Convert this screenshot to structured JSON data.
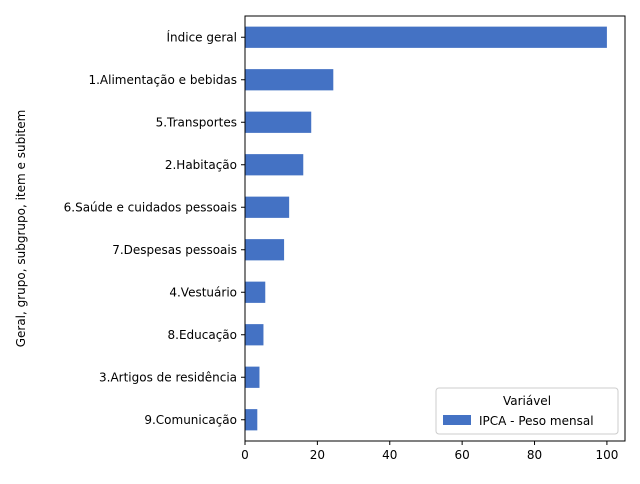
{
  "chart_data": {
    "type": "bar",
    "orientation": "horizontal",
    "title": "",
    "xlabel": "",
    "ylabel": "Geral, grupo, subgrupo, item e subitem",
    "categories": [
      "Índice geral",
      "1.Alimentação e bebidas",
      "5.Transportes",
      "2.Habitação",
      "6.Saúde e cuidados pessoais",
      "7.Despesas pessoais",
      "4.Vestuário",
      "8.Educação",
      "3.Artigos de residência",
      "9.Comunicação"
    ],
    "series": [
      {
        "name": "IPCA - Peso mensal",
        "color": "#4472c4",
        "values": [
          100,
          24.4,
          18.3,
          16.1,
          12.2,
          10.8,
          5.6,
          5.1,
          4.0,
          3.4
        ]
      }
    ],
    "xlim": [
      0,
      105
    ],
    "xticks": [
      0,
      20,
      40,
      60,
      80,
      100
    ],
    "grid": false,
    "legend": {
      "title": "Variável",
      "position": "bottom-right"
    }
  }
}
